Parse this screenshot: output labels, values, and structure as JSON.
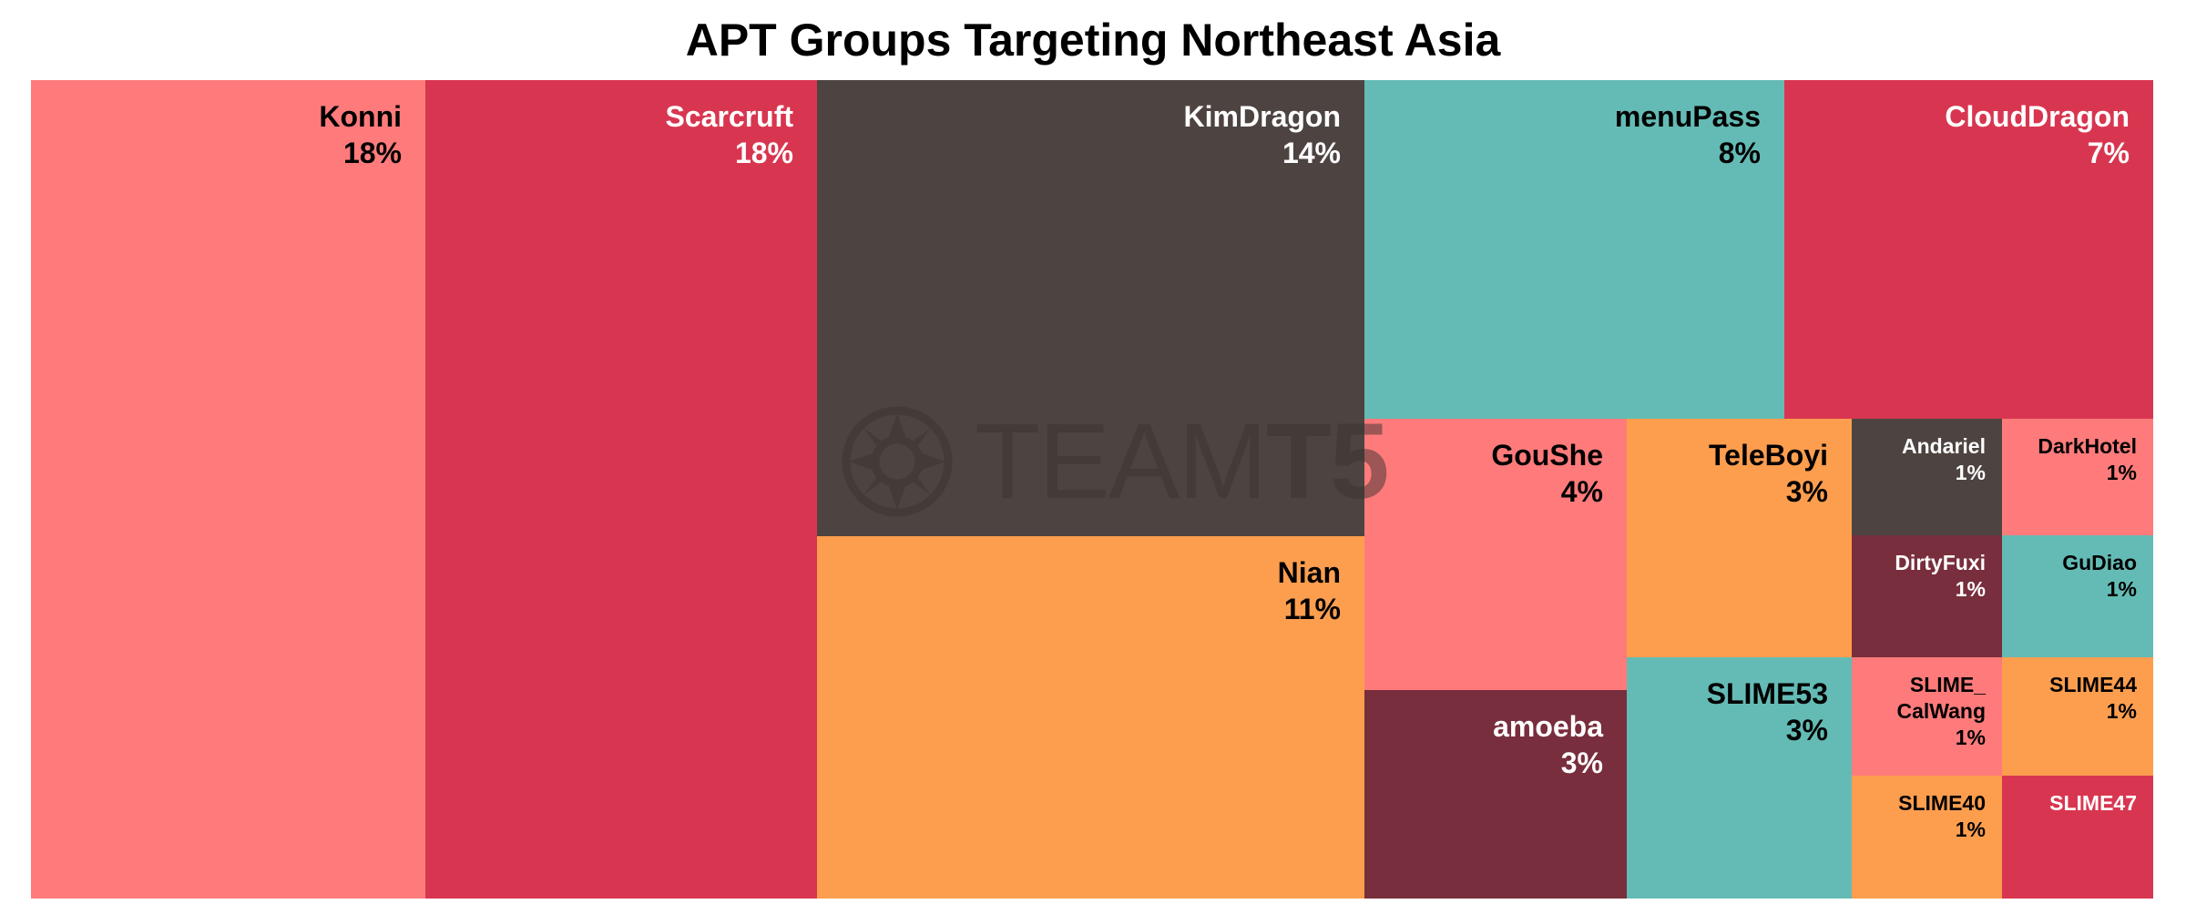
{
  "chart_data": {
    "type": "treemap",
    "title": "APT Groups Targeting Northeast Asia",
    "colors": {
      "coral": "#ff7b7b",
      "crimson": "#d83650",
      "charcoal": "#4d4442",
      "teal": "#64bbb5",
      "orange": "#fd9e4f",
      "maroon": "#782e3c"
    },
    "items": [
      {
        "name": "Konni",
        "pct": "18%",
        "value": 18,
        "color": "#ff7b7b",
        "text_color": "#000000"
      },
      {
        "name": "Scarcruft",
        "pct": "18%",
        "value": 18,
        "color": "#d83650",
        "text_color": "#ffffff"
      },
      {
        "name": "KimDragon",
        "pct": "14%",
        "value": 14,
        "color": "#4d4442",
        "text_color": "#ffffff"
      },
      {
        "name": "Nian",
        "pct": "11%",
        "value": 11,
        "color": "#fd9e4f",
        "text_color": "#000000"
      },
      {
        "name": "menuPass",
        "pct": "8%",
        "value": 8,
        "color": "#64bbb5",
        "text_color": "#000000"
      },
      {
        "name": "CloudDragon",
        "pct": "7%",
        "value": 7,
        "color": "#d83650",
        "text_color": "#ffffff"
      },
      {
        "name": "GouShe",
        "pct": "4%",
        "value": 4,
        "color": "#ff7b7b",
        "text_color": "#000000"
      },
      {
        "name": "amoeba",
        "pct": "3%",
        "value": 3,
        "color": "#782e3c",
        "text_color": "#ffffff"
      },
      {
        "name": "TeleBoyi",
        "pct": "3%",
        "value": 3,
        "color": "#fd9e4f",
        "text_color": "#000000"
      },
      {
        "name": "SLIME53",
        "pct": "3%",
        "value": 3,
        "color": "#64bbb5",
        "text_color": "#000000"
      },
      {
        "name": "Andariel",
        "pct": "1%",
        "value": 1,
        "color": "#4d4442",
        "text_color": "#ffffff"
      },
      {
        "name": "DarkHotel",
        "pct": "1%",
        "value": 1,
        "color": "#ff7b7b",
        "text_color": "#000000"
      },
      {
        "name": "DirtyFuxi",
        "pct": "1%",
        "value": 1,
        "color": "#782e3c",
        "text_color": "#ffffff"
      },
      {
        "name": "GuDiao",
        "pct": "1%",
        "value": 1,
        "color": "#64bbb5",
        "text_color": "#000000"
      },
      {
        "name": "SLIME_\nCalWang",
        "pct": "1%",
        "value": 1,
        "color": "#ff7b7b",
        "text_color": "#000000"
      },
      {
        "name": "SLIME44",
        "pct": "1%",
        "value": 1,
        "color": "#fd9e4f",
        "text_color": "#000000"
      },
      {
        "name": "SLIME40",
        "pct": "1%",
        "value": 1,
        "color": "#fd9e4f",
        "text_color": "#000000"
      },
      {
        "name": "SLIME47",
        "pct": "",
        "value": 1,
        "color": "#d83650",
        "text_color": "#ffffff"
      }
    ]
  },
  "watermark": {
    "text_thin": "TEAM",
    "text_bold": "T5",
    "icon": "team-t5-logo-icon"
  }
}
